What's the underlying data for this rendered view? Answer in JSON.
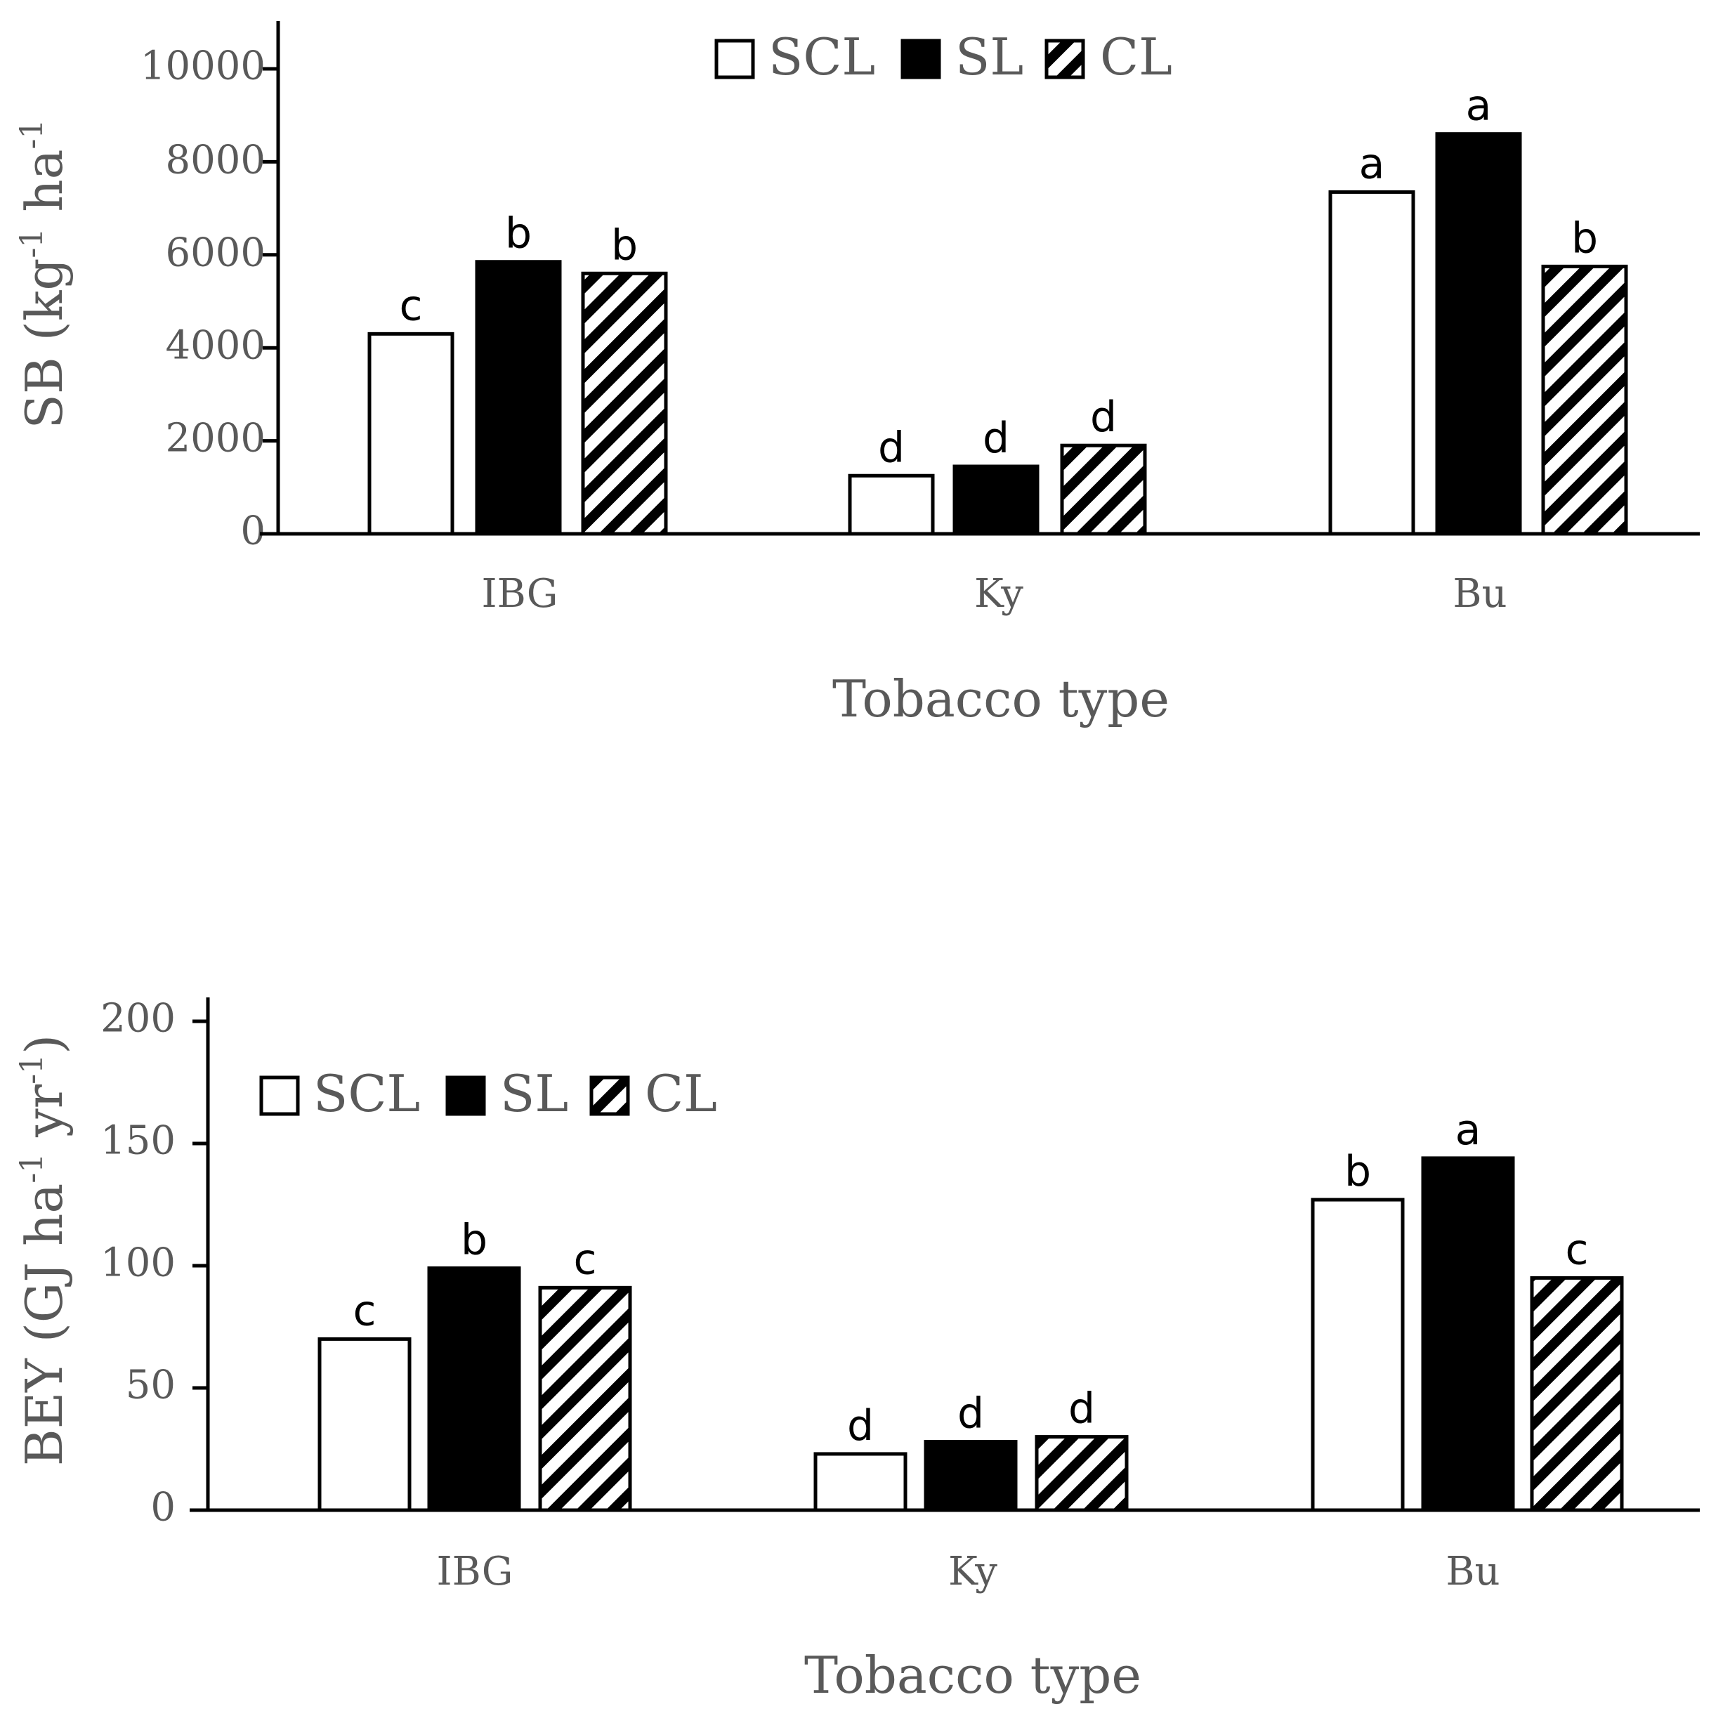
{
  "chart_data": [
    {
      "type": "bar",
      "categories": [
        "IBG",
        "Ky",
        "Bu"
      ],
      "series": [
        {
          "name": "SCL",
          "fill": "white",
          "values": [
            4300,
            1250,
            7350
          ],
          "labels": [
            "c",
            "d",
            "a"
          ]
        },
        {
          "name": "SL",
          "fill": "black",
          "values": [
            5850,
            1450,
            8600
          ],
          "labels": [
            "b",
            "d",
            "a"
          ]
        },
        {
          "name": "CL",
          "fill": "hatch",
          "values": [
            5600,
            1900,
            5750
          ],
          "labels": [
            "b",
            "d",
            "b"
          ]
        }
      ],
      "xlabel": "Tobacco type",
      "ylabel_main": "SB (kg",
      "ylabel_sup1": "-1",
      "ylabel_mid": " ha",
      "ylabel_sup2": "-1",
      "ylabel_end": "",
      "yticks": [
        "0",
        "2000",
        "4000",
        "6000",
        "8000",
        "10000"
      ],
      "ylim": [
        0,
        11000
      ],
      "legend": "top-center"
    },
    {
      "type": "bar",
      "categories": [
        "IBG",
        "Ky",
        "Bu"
      ],
      "series": [
        {
          "name": "SCL",
          "fill": "white",
          "values": [
            70,
            23,
            127
          ],
          "labels": [
            "c",
            "d",
            "b"
          ]
        },
        {
          "name": "SL",
          "fill": "black",
          "values": [
            99,
            28,
            144
          ],
          "labels": [
            "b",
            "d",
            "a"
          ]
        },
        {
          "name": "CL",
          "fill": "hatch",
          "values": [
            91,
            30,
            95
          ],
          "labels": [
            "c",
            "d",
            "c"
          ]
        }
      ],
      "xlabel": "Tobacco type",
      "ylabel_main": "BEY (GJ ha",
      "ylabel_sup1": "-1",
      "ylabel_mid": " yr",
      "ylabel_sup2": "-1",
      "ylabel_end": ")",
      "yticks": [
        "0",
        "50",
        "100",
        "150",
        "200"
      ],
      "ylim": [
        0,
        200
      ],
      "legend": "top-left"
    }
  ],
  "colors": {
    "axis": "#000000",
    "text": "#595959",
    "bar_edge": "#000000",
    "bar_dark": "#000000",
    "bar_light": "#ffffff"
  }
}
